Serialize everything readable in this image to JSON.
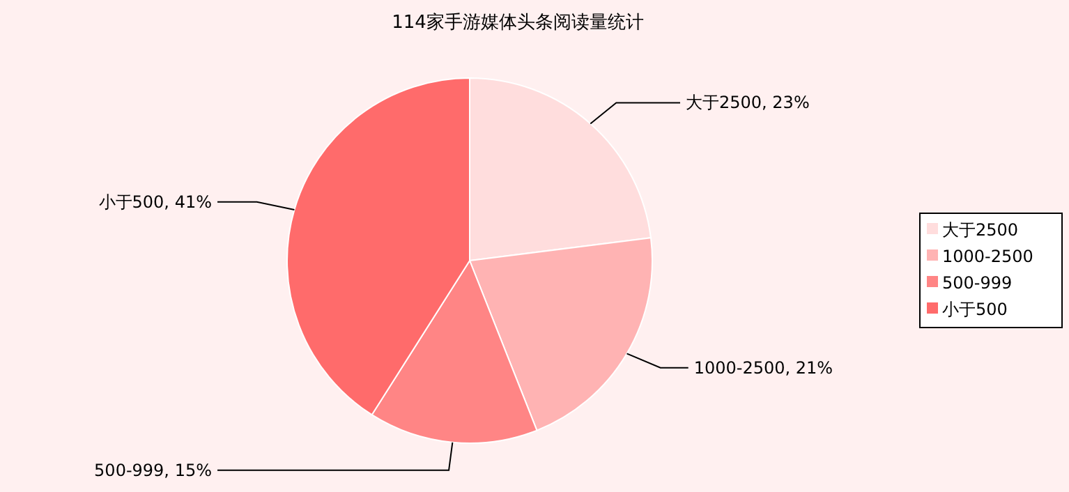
{
  "chart_data": {
    "type": "pie",
    "title": "114家手游媒体头条阅读量统计",
    "categories": [
      "大于2500",
      "1000-2500",
      "500-999",
      "小于500"
    ],
    "values": [
      23,
      21,
      15,
      41
    ],
    "value_labels": [
      "大于2500, 23%",
      "1000-2500, 21%",
      "500-999, 15%",
      "小于500, 41%"
    ],
    "colors": [
      "#ffdddd",
      "#ffb3b3",
      "#ff8585",
      "#ff6b6b"
    ],
    "legend": "right"
  }
}
